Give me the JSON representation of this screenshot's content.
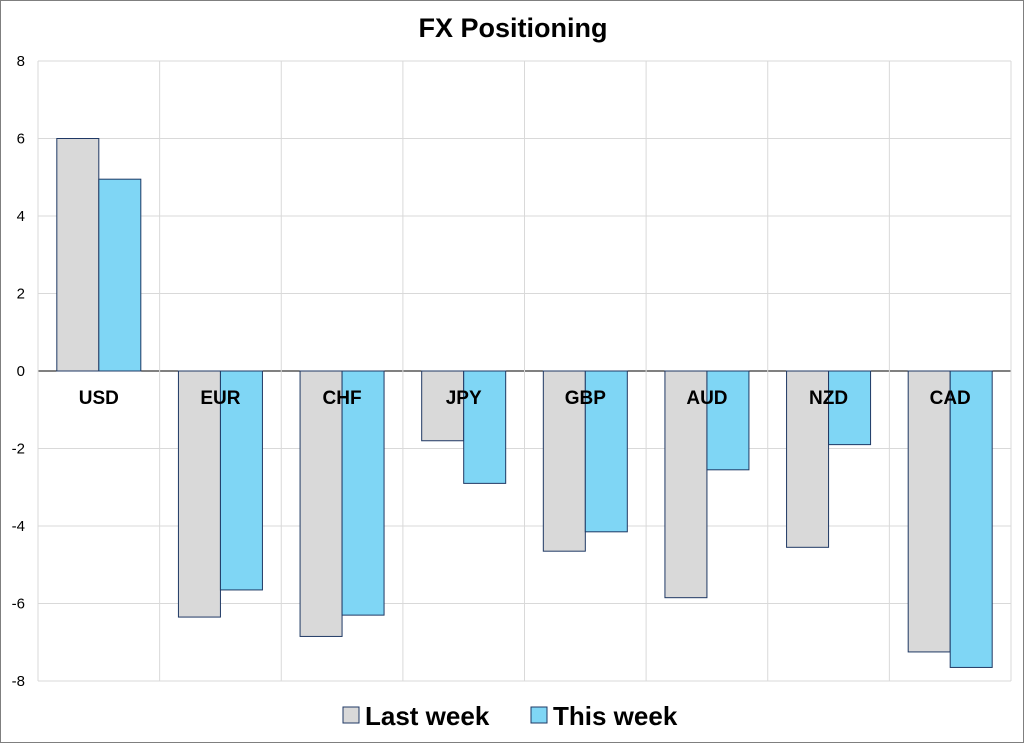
{
  "chart_data": {
    "type": "bar",
    "title": "FX Positioning",
    "categories": [
      "USD",
      "EUR",
      "CHF",
      "JPY",
      "GBP",
      "AUD",
      "NZD",
      "CAD"
    ],
    "series": [
      {
        "name": "Last week",
        "color": "#d9d9d9",
        "values": [
          6.0,
          -6.35,
          -6.85,
          -1.8,
          -4.65,
          -5.85,
          -4.55,
          -7.25
        ]
      },
      {
        "name": "This week",
        "color": "#7fd6f5",
        "values": [
          4.95,
          -5.65,
          -6.3,
          -2.9,
          -4.15,
          -2.55,
          -1.9,
          -7.65
        ]
      }
    ],
    "ylim": [
      -8,
      8
    ],
    "yticks": [
      8,
      6,
      4,
      2,
      0,
      -2,
      -4,
      -6,
      -8
    ],
    "xlabel": "",
    "ylabel": "",
    "grid": true,
    "legend_position": "bottom",
    "bar_edge_color": "#1f3864"
  }
}
